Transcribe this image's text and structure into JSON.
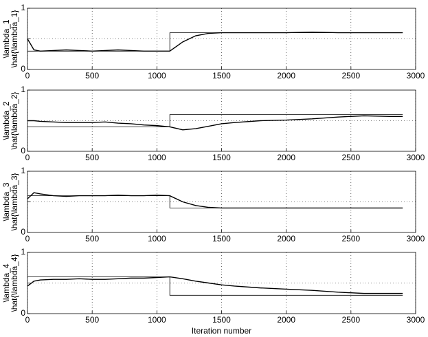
{
  "chart_data": [
    {
      "type": "line",
      "ylabel": [
        "\\lambda_1",
        "\\hat{\\lambda_1}"
      ],
      "x": [
        0,
        50,
        100,
        200,
        300,
        400,
        500,
        600,
        700,
        800,
        900,
        1000,
        1100,
        1100,
        1200,
        1300,
        1400,
        1500,
        1600,
        1800,
        2000,
        2200,
        2400,
        2600,
        2800,
        2900
      ],
      "series": [
        {
          "color": "#000000",
          "values": [
            0.3,
            0.3,
            0.3,
            0.3,
            0.3,
            0.3,
            0.3,
            0.3,
            0.3,
            0.3,
            0.3,
            0.3,
            0.3,
            0.6,
            0.6,
            0.6,
            0.6,
            0.6,
            0.6,
            0.6,
            0.6,
            0.6,
            0.6,
            0.6,
            0.6,
            0.6
          ]
        },
        {
          "color": "#000000",
          "values": [
            0.5,
            0.32,
            0.3,
            0.31,
            0.32,
            0.31,
            0.3,
            0.31,
            0.32,
            0.31,
            0.3,
            0.3,
            0.3,
            0.3,
            0.45,
            0.55,
            0.59,
            0.6,
            0.6,
            0.6,
            0.6,
            0.61,
            0.6,
            0.6,
            0.6,
            0.6
          ]
        }
      ],
      "xlim": [
        0,
        3000
      ],
      "xticks": [
        0,
        500,
        1000,
        1500,
        2000,
        2500,
        3000
      ],
      "ylim": [
        0,
        1
      ],
      "yticks": [
        0,
        1
      ],
      "ygrid": [
        0.5
      ],
      "grid": true
    },
    {
      "type": "line",
      "ylabel": [
        "\\lambda_2",
        "\\hat{\\lambda_2}"
      ],
      "x": [
        0,
        50,
        100,
        200,
        300,
        400,
        500,
        600,
        700,
        800,
        900,
        1000,
        1100,
        1100,
        1200,
        1300,
        1400,
        1500,
        1600,
        1800,
        2000,
        2200,
        2400,
        2600,
        2800,
        2900
      ],
      "series": [
        {
          "color": "#000000",
          "values": [
            0.4,
            0.4,
            0.4,
            0.4,
            0.4,
            0.4,
            0.4,
            0.4,
            0.4,
            0.4,
            0.4,
            0.4,
            0.4,
            0.6,
            0.6,
            0.6,
            0.6,
            0.6,
            0.6,
            0.6,
            0.6,
            0.6,
            0.6,
            0.6,
            0.6,
            0.6
          ]
        },
        {
          "color": "#000000",
          "values": [
            0.5,
            0.5,
            0.49,
            0.48,
            0.47,
            0.47,
            0.47,
            0.48,
            0.46,
            0.45,
            0.43,
            0.42,
            0.4,
            0.4,
            0.35,
            0.37,
            0.41,
            0.45,
            0.47,
            0.5,
            0.51,
            0.53,
            0.56,
            0.58,
            0.57,
            0.57
          ]
        }
      ],
      "xlim": [
        0,
        3000
      ],
      "xticks": [
        0,
        500,
        1000,
        1500,
        2000,
        2500,
        3000
      ],
      "ylim": [
        0,
        1
      ],
      "yticks": [
        0,
        1
      ],
      "ygrid": [
        0.5
      ],
      "grid": true
    },
    {
      "type": "line",
      "ylabel": [
        "\\lambda_3",
        "\\hat{\\lambda_3}"
      ],
      "x": [
        0,
        50,
        100,
        200,
        300,
        400,
        500,
        600,
        700,
        800,
        900,
        1000,
        1100,
        1100,
        1200,
        1300,
        1400,
        1500,
        1600,
        1800,
        2000,
        2200,
        2400,
        2600,
        2800,
        2900
      ],
      "series": [
        {
          "color": "#000000",
          "values": [
            0.6,
            0.6,
            0.6,
            0.6,
            0.6,
            0.6,
            0.6,
            0.6,
            0.6,
            0.6,
            0.6,
            0.6,
            0.6,
            0.4,
            0.4,
            0.4,
            0.4,
            0.4,
            0.4,
            0.4,
            0.4,
            0.4,
            0.4,
            0.4,
            0.4,
            0.4
          ]
        },
        {
          "color": "#000000",
          "values": [
            0.55,
            0.65,
            0.63,
            0.6,
            0.59,
            0.6,
            0.6,
            0.6,
            0.61,
            0.6,
            0.6,
            0.61,
            0.6,
            0.6,
            0.5,
            0.44,
            0.41,
            0.4,
            0.4,
            0.4,
            0.4,
            0.4,
            0.4,
            0.4,
            0.4,
            0.4
          ]
        }
      ],
      "xlim": [
        0,
        3000
      ],
      "xticks": [
        0,
        500,
        1000,
        1500,
        2000,
        2500,
        3000
      ],
      "ylim": [
        0,
        1
      ],
      "yticks": [
        0,
        1
      ],
      "ygrid": [
        0.5
      ],
      "grid": true
    },
    {
      "type": "line",
      "ylabel": [
        "\\lambda_4",
        "\\hat{\\lambda_4}"
      ],
      "xlabel": "Iteration number",
      "x": [
        0,
        50,
        100,
        200,
        300,
        400,
        500,
        600,
        700,
        800,
        900,
        1000,
        1100,
        1100,
        1200,
        1300,
        1400,
        1500,
        1600,
        1800,
        2000,
        2200,
        2400,
        2600,
        2800,
        2900
      ],
      "series": [
        {
          "color": "#000000",
          "values": [
            0.6,
            0.6,
            0.6,
            0.6,
            0.6,
            0.6,
            0.6,
            0.6,
            0.6,
            0.6,
            0.6,
            0.6,
            0.6,
            0.3,
            0.3,
            0.3,
            0.3,
            0.3,
            0.3,
            0.3,
            0.3,
            0.3,
            0.3,
            0.3,
            0.3,
            0.3
          ]
        },
        {
          "color": "#000000",
          "values": [
            0.45,
            0.53,
            0.55,
            0.56,
            0.56,
            0.57,
            0.56,
            0.56,
            0.57,
            0.58,
            0.58,
            0.59,
            0.6,
            0.6,
            0.57,
            0.53,
            0.5,
            0.47,
            0.45,
            0.42,
            0.4,
            0.38,
            0.35,
            0.33,
            0.33,
            0.33
          ]
        }
      ],
      "xlim": [
        0,
        3000
      ],
      "xticks": [
        0,
        500,
        1000,
        1500,
        2000,
        2500,
        3000
      ],
      "ylim": [
        0,
        1
      ],
      "yticks": [
        0,
        1
      ],
      "ygrid": [
        0.5
      ],
      "grid": true
    }
  ]
}
